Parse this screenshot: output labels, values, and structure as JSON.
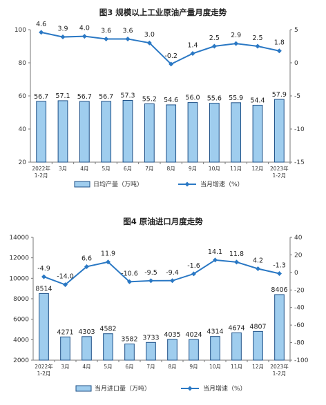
{
  "colors": {
    "bar_fill": "#9fcdee",
    "bar_stroke": "#1c4f86",
    "line": "#2a78c4",
    "axis": "#777777"
  },
  "chart_data": [
    {
      "type": "bar",
      "title": "图3  规模以上工业原油产量月度走势",
      "categories": [
        "2022年\n1-2月",
        "3月",
        "4月",
        "5月",
        "6月",
        "7月",
        "8月",
        "9月",
        "10月",
        "11月",
        "12月",
        "2023年\n1-2月"
      ],
      "series": [
        {
          "name": "日均产量（万吨）",
          "type": "bar",
          "axis": "left",
          "values": [
            56.7,
            57.1,
            56.7,
            56.7,
            57.3,
            55.2,
            54.6,
            56.0,
            55.6,
            55.9,
            54.4,
            57.9
          ]
        },
        {
          "name": "当月增速（%）",
          "type": "line",
          "axis": "right",
          "values": [
            4.6,
            3.9,
            4.0,
            3.6,
            3.6,
            3.0,
            -0.2,
            1.4,
            2.5,
            2.9,
            2.5,
            1.8
          ]
        }
      ],
      "y_left": {
        "range": [
          20,
          100
        ],
        "ticks": [
          20,
          40,
          60,
          80,
          100
        ]
      },
      "y_right": {
        "range": [
          -15,
          5
        ],
        "ticks": [
          -15,
          -10,
          -5,
          0,
          5
        ]
      },
      "legend": "bottom",
      "grid": false
    },
    {
      "type": "bar",
      "title": "图4  原油进口月度走势",
      "categories": [
        "2022年\n1-2月",
        "3月",
        "4月",
        "5月",
        "6月",
        "7月",
        "8月",
        "9月",
        "10月",
        "11月",
        "12月",
        "2023年\n1-2月"
      ],
      "series": [
        {
          "name": "当月进口量（万吨）",
          "type": "bar",
          "axis": "left",
          "values": [
            8514,
            4271,
            4303,
            4582,
            3582,
            3733,
            4035,
            4024,
            4314,
            4674,
            4807,
            8406
          ]
        },
        {
          "name": "当月增速（%）",
          "type": "line",
          "axis": "right",
          "values": [
            -4.9,
            -14.0,
            6.6,
            11.9,
            -10.6,
            -9.5,
            -9.4,
            -1.6,
            14.1,
            11.8,
            4.2,
            -1.3
          ]
        }
      ],
      "y_left": {
        "range": [
          2000,
          14000
        ],
        "ticks": [
          2000,
          4000,
          6000,
          8000,
          10000,
          12000,
          14000
        ]
      },
      "y_right": {
        "range": [
          -100,
          40
        ],
        "ticks": [
          -100,
          -80,
          -60,
          -40,
          -20,
          0,
          20,
          40
        ]
      },
      "legend": "bottom",
      "grid": false
    }
  ]
}
